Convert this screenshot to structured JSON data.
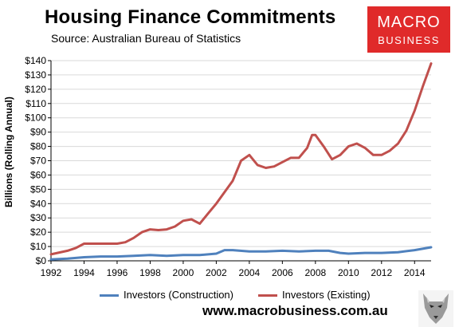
{
  "header": {
    "title": "Housing Finance Commitments",
    "subtitle": "Source: Australian Bureau of Statistics"
  },
  "logo": {
    "line1": "MACRO",
    "line2": "BUSINESS"
  },
  "website": "www.macrobusiness.com.au",
  "colors": {
    "construction": "#4f81bd",
    "existing": "#c0504d",
    "logo_bg": "#e02a2a"
  },
  "chart_data": {
    "type": "line",
    "title": "Housing Finance Commitments",
    "ylabel": "Billions (Rolling Annual)",
    "xlabel": "",
    "xlim": [
      1992,
      2015
    ],
    "ylim": [
      0,
      140
    ],
    "x_ticks": [
      "1992",
      "1994",
      "1996",
      "1998",
      "2000",
      "2002",
      "2004",
      "2006",
      "2008",
      "2010",
      "2012",
      "2014"
    ],
    "y_ticks": [
      "$0",
      "$10",
      "$20",
      "$30",
      "$40",
      "$50",
      "$60",
      "$70",
      "$80",
      "$90",
      "$100",
      "$110",
      "$120",
      "$130",
      "$140"
    ],
    "legend_position": "bottom",
    "series": [
      {
        "name": "Investors (Construction)",
        "x": [
          1992,
          1993,
          1994,
          1995,
          1996,
          1997,
          1998,
          1999,
          2000,
          2001,
          2002,
          2002.5,
          2003,
          2004,
          2005,
          2006,
          2007,
          2008,
          2008.8,
          2009.5,
          2010,
          2011,
          2012,
          2013,
          2014,
          2015
        ],
        "y": [
          1,
          1.5,
          2.5,
          3,
          3,
          3.5,
          4,
          3.5,
          4,
          4,
          5,
          7.5,
          7.5,
          6.5,
          6.5,
          7,
          6.5,
          7,
          7,
          5.5,
          5,
          5.5,
          5.5,
          6,
          7.5,
          9.5
        ]
      },
      {
        "name": "Investors (Existing)",
        "x": [
          1992,
          1993,
          1993.5,
          1994,
          1995,
          1995.5,
          1996,
          1996.5,
          1997,
          1997.5,
          1998,
          1998.5,
          1999,
          1999.5,
          2000,
          2000.5,
          2001,
          2001.5,
          2002,
          2002.5,
          2003,
          2003.5,
          2004,
          2004.5,
          2005,
          2005.5,
          2006,
          2006.5,
          2007,
          2007.5,
          2007.8,
          2008,
          2008.5,
          2009,
          2009.5,
          2010,
          2010.5,
          2011,
          2011.5,
          2012,
          2012.5,
          2013,
          2013.5,
          2014,
          2014.5,
          2015
        ],
        "y": [
          4.5,
          7,
          9,
          12,
          12,
          12,
          12,
          13,
          16,
          20,
          22,
          21.5,
          22,
          24,
          28,
          29,
          26,
          33,
          40,
          48,
          56,
          70,
          74,
          67,
          65,
          66,
          69,
          72,
          72,
          79,
          88,
          88,
          80,
          71,
          74,
          80,
          82,
          79,
          74,
          74,
          77,
          82,
          91,
          105,
          122,
          138
        ]
      }
    ]
  }
}
